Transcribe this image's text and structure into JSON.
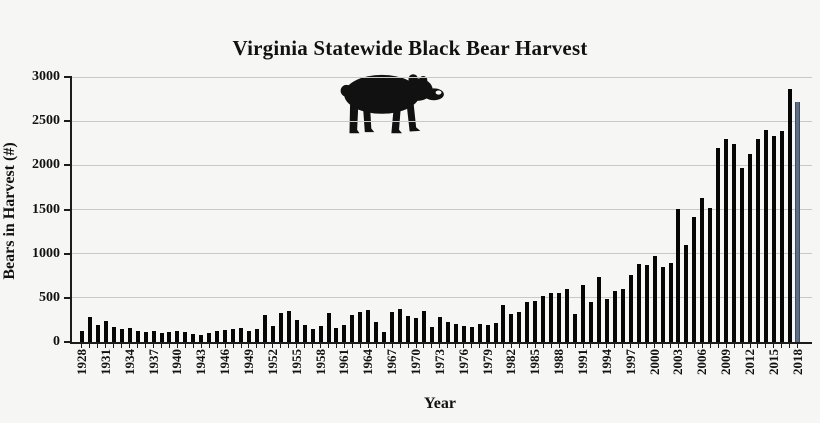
{
  "chart_data": {
    "type": "bar",
    "title": "Virginia Statewide Black Bear Harvest",
    "xlabel": "Year",
    "ylabel": "Bears in Harvest (#)",
    "ylim": [
      0,
      3000
    ],
    "yticks": [
      0,
      500,
      1000,
      1500,
      2000,
      2500,
      3000
    ],
    "grid": true,
    "legend_position": "none",
    "xtick_label_interval": 3,
    "bar_color": "#060606",
    "highlight_category": 2018,
    "highlight_color": "#5d6e86",
    "categories": [
      1928,
      1929,
      1930,
      1931,
      1932,
      1933,
      1934,
      1935,
      1936,
      1937,
      1938,
      1939,
      1940,
      1941,
      1942,
      1943,
      1944,
      1945,
      1946,
      1947,
      1948,
      1949,
      1950,
      1951,
      1952,
      1953,
      1954,
      1955,
      1956,
      1957,
      1958,
      1959,
      1960,
      1961,
      1962,
      1963,
      1964,
      1965,
      1966,
      1967,
      1968,
      1969,
      1970,
      1971,
      1972,
      1973,
      1974,
      1975,
      1976,
      1977,
      1978,
      1979,
      1980,
      1981,
      1982,
      1983,
      1984,
      1985,
      1986,
      1987,
      1988,
      1989,
      1990,
      1991,
      1992,
      1993,
      1994,
      1995,
      1996,
      1997,
      1998,
      1999,
      2000,
      2001,
      2002,
      2003,
      2004,
      2005,
      2006,
      2007,
      2008,
      2009,
      2010,
      2011,
      2012,
      2013,
      2014,
      2015,
      2016,
      2017,
      2018
    ],
    "values": [
      130,
      280,
      195,
      235,
      165,
      150,
      160,
      120,
      115,
      120,
      105,
      115,
      130,
      110,
      95,
      75,
      105,
      120,
      140,
      150,
      160,
      130,
      150,
      305,
      180,
      325,
      350,
      250,
      195,
      150,
      180,
      325,
      160,
      195,
      305,
      335,
      360,
      230,
      110,
      345,
      370,
      290,
      270,
      355,
      170,
      280,
      225,
      205,
      185,
      170,
      205,
      195,
      215,
      420,
      315,
      345,
      450,
      465,
      520,
      550,
      550,
      595,
      315,
      640,
      455,
      740,
      490,
      575,
      605,
      760,
      885,
      875,
      975,
      850,
      900,
      1510,
      1100,
      1420,
      1630,
      1520,
      2200,
      2300,
      2240,
      1970,
      2130,
      2300,
      2400,
      2330,
      2390,
      2860,
      2720
    ]
  },
  "icons": {
    "bear_illustration": "walking-black-bear"
  }
}
